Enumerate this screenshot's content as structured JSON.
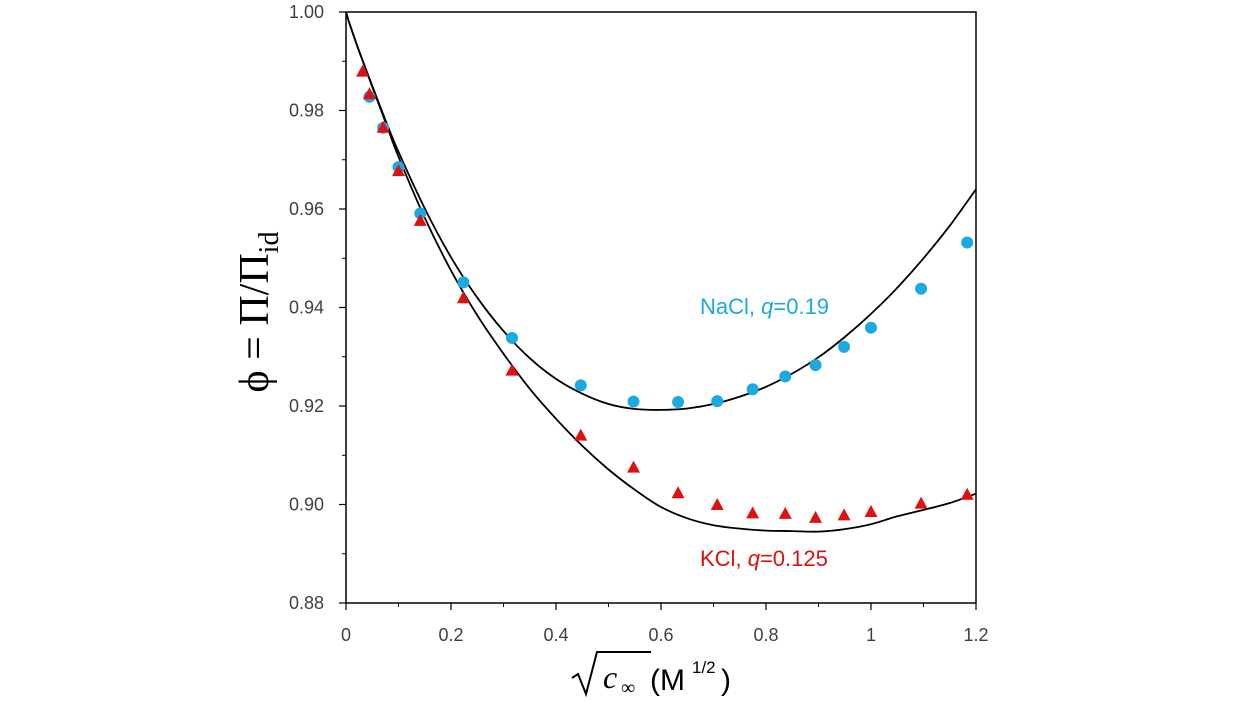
{
  "chart_data": {
    "type": "scatter",
    "xlabel": "c∞ (M1/2)",
    "ylabel": "ϕ = Π/Πid",
    "xlim": [
      0,
      1.2
    ],
    "ylim": [
      0.88,
      1.0
    ],
    "x_ticks": [
      "0",
      "0.2",
      "0.4",
      "0.6",
      "0.8",
      "1",
      "1.2"
    ],
    "y_ticks": [
      "0.88",
      "0.90",
      "0.92",
      "0.94",
      "0.96",
      "0.98",
      "1.00"
    ],
    "x_tick_values": [
      0,
      0.2,
      0.4,
      0.6,
      0.8,
      1.0,
      1.2
    ],
    "y_tick_values": [
      0.88,
      0.9,
      0.92,
      0.94,
      0.96,
      0.98,
      1.0
    ],
    "grid": false,
    "series": [
      {
        "name": "NaCl, q=0.19",
        "label_prefix": "NaCl, ",
        "label_q": "q",
        "label_suffix": "=0.19",
        "color": "#1ba9e1",
        "marker": "circle",
        "x": [
          0.0447,
          0.0707,
          0.1,
          0.1414,
          0.2236,
          0.3162,
          0.4472,
          0.5477,
          0.6325,
          0.7071,
          0.7746,
          0.8367,
          0.8944,
          0.9487,
          1.0,
          1.0954,
          1.1832
        ],
        "y": [
          0.9828,
          0.9765,
          0.9685,
          0.9591,
          0.9451,
          0.9338,
          0.9242,
          0.9209,
          0.9208,
          0.921,
          0.9234,
          0.926,
          0.9283,
          0.932,
          0.9359,
          0.9438,
          0.9532
        ],
        "fit": {
          "x": [
            0.0,
            0.005,
            0.01,
            0.02,
            0.03,
            0.05,
            0.075,
            0.1,
            0.15,
            0.2,
            0.25,
            0.3,
            0.35,
            0.4,
            0.45,
            0.5,
            0.55,
            0.6,
            0.65,
            0.7,
            0.75,
            0.8,
            0.85,
            0.9,
            0.95,
            1.0,
            1.05,
            1.1,
            1.15,
            1.2
          ],
          "y": [
            1.0,
            0.9982,
            0.9966,
            0.9935,
            0.9906,
            0.985,
            0.9781,
            0.9716,
            0.9601,
            0.9502,
            0.942,
            0.9352,
            0.9297,
            0.9255,
            0.9225,
            0.9204,
            0.9194,
            0.9192,
            0.9195,
            0.9204,
            0.9219,
            0.9239,
            0.9266,
            0.9299,
            0.934,
            0.9387,
            0.944,
            0.95,
            0.9566,
            0.964
          ]
        }
      },
      {
        "name": "KCl, q=0.125",
        "label_prefix": "KCl, ",
        "label_q": "q",
        "label_suffix": "=0.125",
        "color": "#e01010",
        "marker": "triangle",
        "x": [
          0.0316,
          0.0447,
          0.0707,
          0.1,
          0.1414,
          0.2236,
          0.3162,
          0.4472,
          0.5477,
          0.6325,
          0.7071,
          0.7746,
          0.8367,
          0.8944,
          0.9487,
          1.0,
          1.0954,
          1.1832
        ],
        "y": [
          0.9878,
          0.9832,
          0.9764,
          0.9676,
          0.9575,
          0.9418,
          0.9271,
          0.9139,
          0.9074,
          0.9022,
          0.8998,
          0.8981,
          0.898,
          0.8972,
          0.8977,
          0.8984,
          0.9001,
          0.9019
        ],
        "fit": {
          "x": [
            0.0,
            0.005,
            0.01,
            0.02,
            0.03,
            0.05,
            0.075,
            0.1,
            0.15,
            0.2,
            0.25,
            0.3,
            0.35,
            0.4,
            0.45,
            0.5,
            0.55,
            0.6,
            0.65,
            0.7,
            0.75,
            0.8,
            0.85,
            0.9,
            0.95,
            1.0,
            1.05,
            1.1,
            1.15,
            1.2
          ],
          "y": [
            1.0,
            0.9982,
            0.9966,
            0.9935,
            0.9906,
            0.9848,
            0.9777,
            0.9706,
            0.9582,
            0.9475,
            0.9384,
            0.9306,
            0.9235,
            0.9174,
            0.9119,
            0.9071,
            0.903,
            0.8995,
            0.8972,
            0.8958,
            0.8951,
            0.8947,
            0.8946,
            0.8945,
            0.895,
            0.896,
            0.8976,
            0.8989,
            0.9003,
            0.9022
          ]
        }
      }
    ]
  }
}
